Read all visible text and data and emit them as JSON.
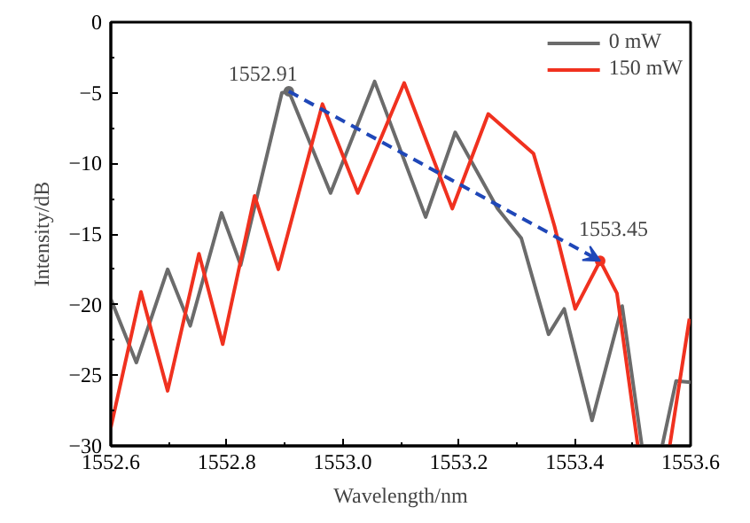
{
  "chart_data": {
    "type": "line",
    "xlabel": "Wavelength/nm",
    "ylabel": "Intensity/dB",
    "xlim": [
      1552.6,
      1553.6
    ],
    "xticks": [
      {
        "value": 1552.6,
        "label": "1552.6"
      },
      {
        "value": 1552.8,
        "label": "1552.8"
      },
      {
        "value": 1553.0,
        "label": "1553.0"
      },
      {
        "value": 1553.2,
        "label": "1553.2"
      },
      {
        "value": 1553.4,
        "label": "1553.4"
      },
      {
        "value": 1553.6,
        "label": "1553.6"
      }
    ],
    "ylim": [
      -30,
      0
    ],
    "yticks": [
      -30,
      -25,
      -20,
      -15,
      -10,
      -5,
      0
    ],
    "grid": false,
    "legend": "top right",
    "marker": "none",
    "line_style": "solid",
    "series": [
      {
        "name": "0 mW",
        "color": "#6b6b6b",
        "x": [
          1552.6,
          1552.644,
          1552.698,
          1552.737,
          1552.791,
          1552.824,
          1552.895,
          1552.907,
          1552.979,
          1553.055,
          1553.143,
          1553.194,
          1553.267,
          1553.308,
          1553.355,
          1553.382,
          1553.43,
          1553.482,
          1553.516,
          null,
          1553.551,
          1553.575,
          1553.6
        ],
        "values": [
          -19.6,
          -24.1,
          -17.5,
          -21.5,
          -13.5,
          -17.2,
          -5.0,
          -4.9,
          -12.1,
          -4.2,
          -13.8,
          -7.8,
          -13.2,
          -15.3,
          -22.1,
          -20.3,
          -28.2,
          -20.1,
          -30,
          null,
          -30,
          -25.4,
          -25.5
        ]
      },
      {
        "name": "150 mW",
        "color": "#f0311f",
        "x": [
          1552.6,
          1552.652,
          1552.698,
          1552.752,
          1552.793,
          1552.848,
          1552.889,
          1552.965,
          1553.026,
          1553.106,
          1553.189,
          1553.251,
          1553.329,
          1553.365,
          1553.401,
          1553.444,
          1553.473,
          1553.509,
          null,
          1553.564,
          1553.598
        ],
        "values": [
          -28.7,
          -19.1,
          -26.1,
          -16.4,
          -22.8,
          -12.3,
          -17.5,
          -5.8,
          -12.1,
          -4.3,
          -13.2,
          -6.5,
          -9.3,
          -14.4,
          -20.3,
          -16.9,
          -19.2,
          -30,
          null,
          -30,
          -21
        ]
      }
    ],
    "annotations": [
      {
        "text": "1552.91",
        "x": 1552.907,
        "y": -4.9
      },
      {
        "text": "1553.45",
        "x": 1553.444,
        "y": -16.9
      }
    ]
  }
}
